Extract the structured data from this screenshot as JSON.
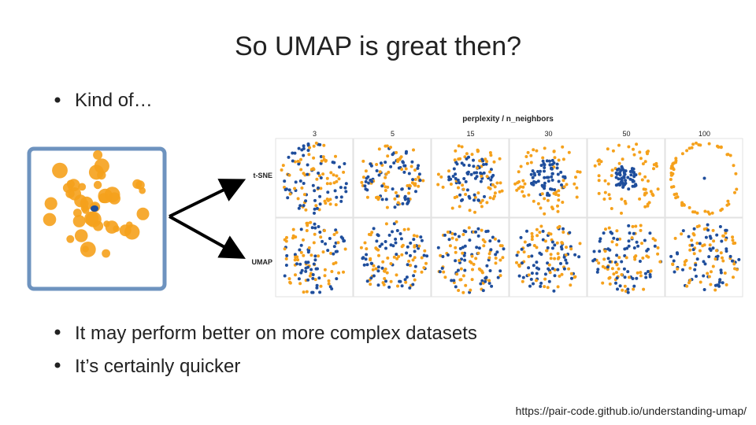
{
  "header": {
    "title": "So UMAP is great then?"
  },
  "bullets_top": [
    "Kind of…"
  ],
  "figure": {
    "heading": "perplexity / n_neighbors",
    "columns": [
      "3",
      "5",
      "15",
      "30",
      "50",
      "100"
    ],
    "rows": [
      "t-SNE",
      "UMAP"
    ]
  },
  "bullets_bottom": [
    "It may perform better on more complex datasets",
    "It’s certainly quicker"
  ],
  "footer": {
    "url": "https://pair-code.github.io/understanding-umap/"
  }
}
